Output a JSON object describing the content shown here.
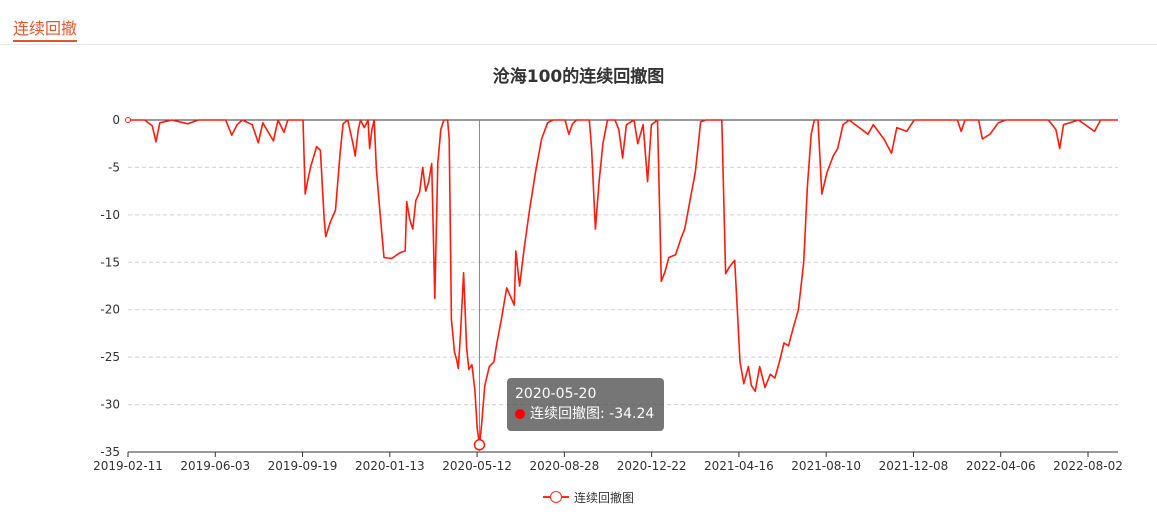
{
  "header": {
    "section_title": "连续回撤"
  },
  "chart_data": {
    "type": "line",
    "title": "沧海100的连续回撤图",
    "series_name": "连续回撤图",
    "ylim": [
      -35,
      0
    ],
    "yticks": [
      0,
      -5,
      -10,
      -15,
      -20,
      -25,
      -30,
      -35
    ],
    "x_tick_labels": [
      "2019-02-11",
      "2019-06-03",
      "2019-09-19",
      "2020-01-13",
      "2020-05-12",
      "2020-08-28",
      "2020-12-22",
      "2021-04-16",
      "2021-08-10",
      "2021-12-08",
      "2022-04-06",
      "2022-08-02"
    ],
    "x_start": "2019-02-11",
    "x_end": "2022-09-10",
    "grid": "horizontal dashed",
    "legend_position": "bottom-center",
    "color": "#ff1a0a",
    "points": [
      [
        "2019-02-11",
        0
      ],
      [
        "2019-03-05",
        0
      ],
      [
        "2019-03-15",
        -0.6
      ],
      [
        "2019-03-20",
        -2.3
      ],
      [
        "2019-03-25",
        -0.3
      ],
      [
        "2019-04-10",
        0
      ],
      [
        "2019-05-01",
        -0.4
      ],
      [
        "2019-05-15",
        0
      ],
      [
        "2019-06-20",
        0
      ],
      [
        "2019-06-28",
        -1.6
      ],
      [
        "2019-07-05",
        -0.5
      ],
      [
        "2019-07-12",
        0
      ],
      [
        "2019-07-25",
        -0.5
      ],
      [
        "2019-08-02",
        -2.4
      ],
      [
        "2019-08-08",
        -0.3
      ],
      [
        "2019-08-22",
        -2.2
      ],
      [
        "2019-08-28",
        0
      ],
      [
        "2019-09-05",
        -1.3
      ],
      [
        "2019-09-10",
        0
      ],
      [
        "2019-09-30",
        0
      ],
      [
        "2019-10-03",
        -7.8
      ],
      [
        "2019-10-06",
        -6.5
      ],
      [
        "2019-10-10",
        -5.0
      ],
      [
        "2019-10-18",
        -2.8
      ],
      [
        "2019-10-23",
        -3.2
      ],
      [
        "2019-10-28",
        -10.5
      ],
      [
        "2019-10-30",
        -12.3
      ],
      [
        "2019-11-05",
        -10.8
      ],
      [
        "2019-11-12",
        -9.5
      ],
      [
        "2019-11-18",
        -3.5
      ],
      [
        "2019-11-22",
        -0.4
      ],
      [
        "2019-11-28",
        0
      ],
      [
        "2019-12-05",
        -2.5
      ],
      [
        "2019-12-08",
        -3.8
      ],
      [
        "2019-12-12",
        -1.0
      ],
      [
        "2019-12-15",
        0
      ],
      [
        "2019-12-20",
        -0.8
      ],
      [
        "2019-12-25",
        0
      ],
      [
        "2019-12-27",
        -3.0
      ],
      [
        "2019-12-30",
        -1.0
      ],
      [
        "2020-01-02",
        0
      ],
      [
        "2020-01-05",
        -5.2
      ],
      [
        "2020-01-10",
        -10.0
      ],
      [
        "2020-01-15",
        -14.5
      ],
      [
        "2020-01-25",
        -14.6
      ],
      [
        "2020-02-05",
        -14.0
      ],
      [
        "2020-02-12",
        -13.8
      ],
      [
        "2020-02-14",
        -8.6
      ],
      [
        "2020-02-18",
        -10.5
      ],
      [
        "2020-02-22",
        -11.5
      ],
      [
        "2020-02-26",
        -8.5
      ],
      [
        "2020-03-02",
        -7.6
      ],
      [
        "2020-03-06",
        -5.0
      ],
      [
        "2020-03-10",
        -7.5
      ],
      [
        "2020-03-14",
        -6.5
      ],
      [
        "2020-03-18",
        -4.6
      ],
      [
        "2020-03-22",
        -18.8
      ],
      [
        "2020-03-26",
        -4.6
      ],
      [
        "2020-03-30",
        -1.0
      ],
      [
        "2020-04-03",
        0
      ],
      [
        "2020-04-08",
        0
      ],
      [
        "2020-04-10",
        -2.0
      ],
      [
        "2020-04-13",
        -21.0
      ],
      [
        "2020-04-17",
        -24.5
      ],
      [
        "2020-04-20",
        -25.3
      ],
      [
        "2020-04-22",
        -26.2
      ],
      [
        "2020-04-25",
        -22.5
      ],
      [
        "2020-04-29",
        -16.1
      ],
      [
        "2020-05-03",
        -24.0
      ],
      [
        "2020-05-06",
        -26.3
      ],
      [
        "2020-05-10",
        -25.8
      ],
      [
        "2020-05-14",
        -28.5
      ],
      [
        "2020-05-17",
        -32.5
      ],
      [
        "2020-05-20",
        -34.24
      ],
      [
        "2020-05-23",
        -32.0
      ],
      [
        "2020-05-27",
        -28.0
      ],
      [
        "2020-06-02",
        -26.0
      ],
      [
        "2020-06-08",
        -25.5
      ],
      [
        "2020-06-12",
        -23.5
      ],
      [
        "2020-06-18",
        -21.0
      ],
      [
        "2020-06-25",
        -17.7
      ],
      [
        "2020-07-01",
        -18.8
      ],
      [
        "2020-07-05",
        -19.5
      ],
      [
        "2020-07-07",
        -13.8
      ],
      [
        "2020-07-12",
        -17.5
      ],
      [
        "2020-07-18",
        -13.5
      ],
      [
        "2020-07-25",
        -9.5
      ],
      [
        "2020-08-02",
        -5.5
      ],
      [
        "2020-08-10",
        -2.0
      ],
      [
        "2020-08-18",
        -0.3
      ],
      [
        "2020-08-25",
        0
      ],
      [
        "2020-09-10",
        0
      ],
      [
        "2020-09-15",
        -1.5
      ],
      [
        "2020-09-20",
        -0.4
      ],
      [
        "2020-09-25",
        0
      ],
      [
        "2020-10-12",
        0
      ],
      [
        "2020-10-15",
        -3.0
      ],
      [
        "2020-10-20",
        -11.5
      ],
      [
        "2020-10-25",
        -6.5
      ],
      [
        "2020-10-30",
        -2.5
      ],
      [
        "2020-11-05",
        0
      ],
      [
        "2020-11-15",
        0
      ],
      [
        "2020-11-20",
        -1.0
      ],
      [
        "2020-11-25",
        -4.0
      ],
      [
        "2020-11-30",
        -0.5
      ],
      [
        "2020-12-10",
        0
      ],
      [
        "2020-12-15",
        -2.5
      ],
      [
        "2020-12-22",
        -0.5
      ],
      [
        "2020-12-28",
        -6.5
      ],
      [
        "2021-01-02",
        -0.5
      ],
      [
        "2021-01-10",
        0
      ],
      [
        "2021-01-15",
        -17.0
      ],
      [
        "2021-01-20",
        -16.0
      ],
      [
        "2021-01-25",
        -14.5
      ],
      [
        "2021-02-03",
        -14.2
      ],
      [
        "2021-02-10",
        -12.5
      ],
      [
        "2021-02-15",
        -11.5
      ],
      [
        "2021-02-22",
        -8.5
      ],
      [
        "2021-03-01",
        -5.5
      ],
      [
        "2021-03-05",
        -2.5
      ],
      [
        "2021-03-08",
        -0.2
      ],
      [
        "2021-03-15",
        0
      ],
      [
        "2021-04-05",
        0
      ],
      [
        "2021-04-10",
        -16.2
      ],
      [
        "2021-04-15",
        -15.5
      ],
      [
        "2021-04-22",
        -14.8
      ],
      [
        "2021-04-26",
        -21.0
      ],
      [
        "2021-04-29",
        -25.5
      ],
      [
        "2021-05-04",
        -27.8
      ],
      [
        "2021-05-10",
        -26.0
      ],
      [
        "2021-05-14",
        -28.0
      ],
      [
        "2021-05-19",
        -28.6
      ],
      [
        "2021-05-25",
        -26.0
      ],
      [
        "2021-06-01",
        -28.2
      ],
      [
        "2021-06-08",
        -26.8
      ],
      [
        "2021-06-14",
        -27.2
      ],
      [
        "2021-06-20",
        -25.5
      ],
      [
        "2021-06-26",
        -23.5
      ],
      [
        "2021-07-02",
        -23.8
      ],
      [
        "2021-07-08",
        -22.0
      ],
      [
        "2021-07-15",
        -20.0
      ],
      [
        "2021-07-22",
        -15.0
      ],
      [
        "2021-07-27",
        -7.0
      ],
      [
        "2021-08-01",
        -1.5
      ],
      [
        "2021-08-05",
        0
      ],
      [
        "2021-08-10",
        0
      ],
      [
        "2021-08-15",
        -7.8
      ],
      [
        "2021-08-22",
        -5.5
      ],
      [
        "2021-08-30",
        -3.8
      ],
      [
        "2021-09-05",
        -3.0
      ],
      [
        "2021-09-12",
        -0.5
      ],
      [
        "2021-09-20",
        0
      ],
      [
        "2021-10-15",
        -1.5
      ],
      [
        "2021-10-22",
        -0.5
      ],
      [
        "2021-11-05",
        -2.0
      ],
      [
        "2021-11-15",
        -3.5
      ],
      [
        "2021-11-22",
        -0.8
      ],
      [
        "2021-12-05",
        -1.2
      ],
      [
        "2021-12-15",
        0
      ],
      [
        "2022-02-10",
        0
      ],
      [
        "2022-02-15",
        -1.2
      ],
      [
        "2022-02-20",
        0
      ],
      [
        "2022-03-10",
        0
      ],
      [
        "2022-03-15",
        -2.0
      ],
      [
        "2022-03-25",
        -1.5
      ],
      [
        "2022-04-05",
        -0.3
      ],
      [
        "2022-04-15",
        0
      ],
      [
        "2022-06-10",
        0
      ],
      [
        "2022-06-20",
        -1.0
      ],
      [
        "2022-06-25",
        -3.0
      ],
      [
        "2022-06-30",
        -0.5
      ],
      [
        "2022-07-20",
        0
      ],
      [
        "2022-08-10",
        -1.2
      ],
      [
        "2022-08-18",
        0
      ],
      [
        "2022-09-10",
        0
      ]
    ],
    "highlight": {
      "date": "2020-05-20",
      "value": -34.24
    }
  },
  "tooltip": {
    "date": "2020-05-20",
    "label": "连续回撤图: -34.24"
  },
  "legend": {
    "label": "连续回撤图"
  }
}
